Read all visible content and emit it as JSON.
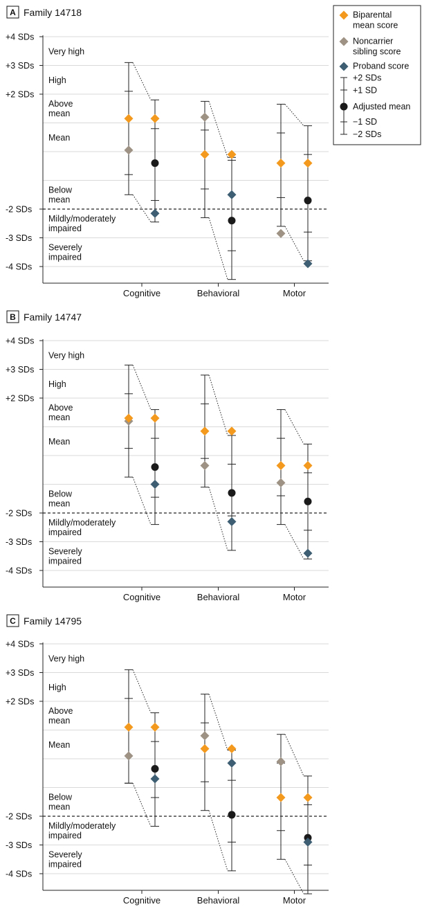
{
  "colors": {
    "biparental": "#F39A1E",
    "sibling": "#9E9284",
    "proband": "#3E5F73",
    "adjusted": "#1A1A1A",
    "line": "#222222",
    "grid": "#D9D9D9"
  },
  "legend": {
    "biparental": [
      "Biparental",
      "mean score"
    ],
    "sibling": [
      "Noncarrier",
      "sibling score"
    ],
    "proband": "Proband score",
    "plus2": "+2 SDs",
    "plus1": "+1 SD",
    "adjusted": "Adjusted mean",
    "minus1": "−1 SD",
    "minus2": "−2 SDs"
  },
  "y_ticks": [
    {
      "value": 4,
      "label": "+4 SDs"
    },
    {
      "value": 3,
      "label": "+3 SDs"
    },
    {
      "value": 2,
      "label": "+2 SDs"
    },
    {
      "value": -2,
      "label": "-2 SDs"
    },
    {
      "value": -3,
      "label": "-3 SDs"
    },
    {
      "value": -4,
      "label": "-4 SDs"
    }
  ],
  "bands": [
    {
      "lines": [
        "Very high"
      ],
      "center": 3.5
    },
    {
      "lines": [
        "High"
      ],
      "center": 2.5
    },
    {
      "lines": [
        "Above",
        "mean"
      ],
      "center": 1.5
    },
    {
      "lines": [
        "Mean"
      ],
      "center": 0.5
    },
    {
      "lines": [
        "Below",
        "mean"
      ],
      "center": -1.5
    },
    {
      "lines": [
        "Mildly/moderately",
        "impaired"
      ],
      "center": -2.5
    },
    {
      "lines": [
        "Severely",
        "impaired"
      ],
      "center": -3.5
    }
  ],
  "chart_data": [
    {
      "type": "scatter",
      "letter": "A",
      "title": "Family 14718",
      "categories": [
        "Cognitive",
        "Behavioral",
        "Motor"
      ],
      "ylim": [
        -4.6,
        4.3
      ],
      "groups": [
        {
          "biparental": 1.15,
          "sibling": 0.05,
          "left_plus2": 3.1,
          "left_plus1": 2.1,
          "left_minus1": -0.8,
          "left_minus2": -1.5,
          "adjusted": -0.4,
          "proband": -2.15,
          "right_plus2": 1.8,
          "right_plus1": 0.8,
          "right_minus1": -1.7,
          "right_minus2": -2.45
        },
        {
          "biparental": -0.1,
          "sibling": 1.2,
          "left_plus2": 1.75,
          "left_plus1": 0.75,
          "left_minus1": -1.3,
          "left_minus2": -2.3,
          "adjusted": -2.4,
          "proband": -1.5,
          "right_plus2": -0.2,
          "right_plus1": -0.3,
          "right_minus1": -3.45,
          "right_minus2": -4.45
        },
        {
          "biparental": -0.4,
          "sibling": -2.85,
          "left_plus2": 1.65,
          "left_plus1": 0.65,
          "left_minus1": -1.6,
          "left_minus2": -2.6,
          "adjusted": -1.7,
          "proband": -3.9,
          "right_plus2": 0.9,
          "right_plus1": -0.1,
          "right_minus1": -2.8,
          "right_minus2": -3.8
        }
      ]
    },
    {
      "type": "scatter",
      "letter": "B",
      "title": "Family 14747",
      "categories": [
        "Cognitive",
        "Behavioral",
        "Motor"
      ],
      "ylim": [
        -4.6,
        4.3
      ],
      "groups": [
        {
          "biparental": 1.3,
          "sibling": 1.2,
          "left_plus2": 3.15,
          "left_plus1": 2.15,
          "left_minus1": 0.25,
          "left_minus2": -0.75,
          "adjusted": -0.4,
          "proband": -1.0,
          "right_plus2": 1.6,
          "right_plus1": 0.6,
          "right_minus1": -1.45,
          "right_minus2": -2.4
        },
        {
          "biparental": 0.85,
          "sibling": -0.35,
          "left_plus2": 2.8,
          "left_plus1": 1.8,
          "left_minus1": -0.1,
          "left_minus2": -1.1,
          "adjusted": -1.3,
          "proband": -2.3,
          "right_plus2": 0.7,
          "right_plus1": -0.3,
          "right_minus1": -2.1,
          "right_minus2": -3.3
        },
        {
          "biparental": -0.35,
          "sibling": -0.95,
          "left_plus2": 1.6,
          "left_plus1": 0.6,
          "left_minus1": -1.4,
          "left_minus2": -2.4,
          "adjusted": -1.6,
          "proband": -3.4,
          "right_plus2": 0.4,
          "right_plus1": -0.6,
          "right_minus1": -2.6,
          "right_minus2": -3.6
        }
      ]
    },
    {
      "type": "scatter",
      "letter": "C",
      "title": "Family 14795",
      "categories": [
        "Cognitive",
        "Behavioral",
        "Motor"
      ],
      "ylim": [
        -4.6,
        4.3
      ],
      "groups": [
        {
          "biparental": 1.1,
          "sibling": 0.1,
          "left_plus2": 3.1,
          "left_plus1": 2.1,
          "left_minus1": -0.85,
          "left_minus2": -0.85,
          "adjusted": -0.35,
          "proband": -0.7,
          "right_plus2": 1.6,
          "right_plus1": 0.6,
          "right_minus1": -1.35,
          "right_minus2": -2.35
        },
        {
          "biparental": 0.35,
          "sibling": 0.8,
          "left_plus2": 2.25,
          "left_plus1": 1.25,
          "left_minus1": -0.8,
          "left_minus2": -1.8,
          "adjusted": -1.95,
          "proband": -0.15,
          "right_plus2": 0.3,
          "right_plus1": -0.75,
          "right_minus1": -2.9,
          "right_minus2": -3.9
        },
        {
          "biparental": -1.35,
          "sibling": -0.1,
          "left_plus2": 0.85,
          "left_plus1": -0.15,
          "left_minus1": -2.5,
          "left_minus2": -3.5,
          "adjusted": -2.75,
          "proband": -2.9,
          "right_plus2": -0.6,
          "right_plus1": -1.6,
          "right_minus1": -3.7,
          "right_minus2": -4.7
        }
      ]
    }
  ]
}
